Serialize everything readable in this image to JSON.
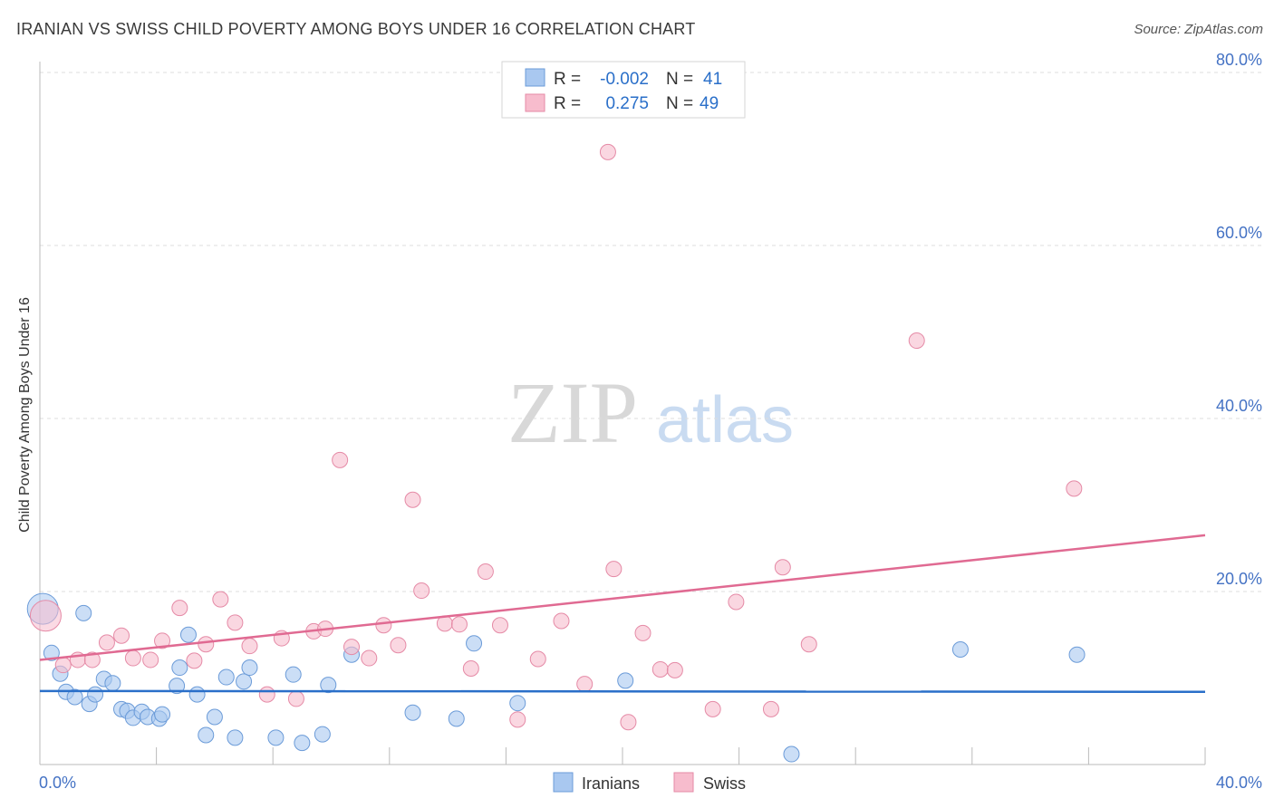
{
  "title": "IRANIAN VS SWISS CHILD POVERTY AMONG BOYS UNDER 16 CORRELATION CHART",
  "source": "Source: ZipAtlas.com",
  "watermark": {
    "zip": "ZIP",
    "atlas": "atlas"
  },
  "legend": {
    "r_label": "R =",
    "n_label": "N =",
    "rows": [
      {
        "r": "-0.002",
        "n": "41"
      },
      {
        "r": "0.275",
        "n": "49"
      }
    ]
  },
  "colors": {
    "iranians_fill": "#a9c8f0",
    "iranians_stroke": "#6b9bd8",
    "iranians_line": "#2a6fc9",
    "swiss_fill": "#f7bccd",
    "swiss_stroke": "#e58aa6",
    "swiss_line": "#e06a92",
    "axis_text": "#4472c4",
    "value_text": "#2a6fc9"
  },
  "chart_data": {
    "type": "scatter",
    "title": "IRANIAN VS SWISS CHILD POVERTY AMONG BOYS UNDER 16 CORRELATION CHART",
    "xlabel": "",
    "ylabel": "Child Poverty Among Boys Under 16",
    "xlim": [
      0,
      40
    ],
    "ylim": [
      0,
      80
    ],
    "x_tick_labels": [
      "0.0%",
      "40.0%"
    ],
    "y_ticks": [
      20,
      40,
      60,
      80
    ],
    "y_tick_labels": [
      "20.0%",
      "40.0%",
      "60.0%",
      "80.0%"
    ],
    "grid": true,
    "legend_position": "top-center",
    "series": [
      {
        "name": "Iranians",
        "r": -0.002,
        "n": 41,
        "trend": [
          [
            0,
            8.5
          ],
          [
            40,
            8.4
          ]
        ],
        "points": [
          [
            0.1,
            18.0,
            "big"
          ],
          [
            0.4,
            12.9
          ],
          [
            0.7,
            10.5
          ],
          [
            0.9,
            8.4
          ],
          [
            1.2,
            7.8
          ],
          [
            1.5,
            17.5
          ],
          [
            1.7,
            7.0
          ],
          [
            1.9,
            8.1
          ],
          [
            2.2,
            9.9
          ],
          [
            2.5,
            9.4
          ],
          [
            2.8,
            6.4
          ],
          [
            3.0,
            6.2
          ],
          [
            3.2,
            5.4
          ],
          [
            3.5,
            6.1
          ],
          [
            3.7,
            5.5
          ],
          [
            4.1,
            5.3
          ],
          [
            4.2,
            5.8
          ],
          [
            4.7,
            9.1
          ],
          [
            4.8,
            11.2
          ],
          [
            5.1,
            15.0
          ],
          [
            5.4,
            8.1
          ],
          [
            5.7,
            3.4
          ],
          [
            6.0,
            5.5
          ],
          [
            6.4,
            10.1
          ],
          [
            6.7,
            3.1
          ],
          [
            7.0,
            9.6
          ],
          [
            7.2,
            11.2
          ],
          [
            8.1,
            3.1
          ],
          [
            8.7,
            10.4
          ],
          [
            9.0,
            2.5
          ],
          [
            9.7,
            3.5
          ],
          [
            9.9,
            9.2
          ],
          [
            10.7,
            12.7
          ],
          [
            12.8,
            6.0
          ],
          [
            14.3,
            5.3
          ],
          [
            14.9,
            14.0
          ],
          [
            16.4,
            7.1
          ],
          [
            20.1,
            9.7
          ],
          [
            25.8,
            1.2
          ],
          [
            31.6,
            13.3
          ],
          [
            35.6,
            12.7
          ]
        ]
      },
      {
        "name": "Swiss",
        "r": 0.275,
        "n": 49,
        "trend": [
          [
            0,
            12.1
          ],
          [
            40,
            26.5
          ]
        ],
        "points": [
          [
            0.2,
            17.2,
            "big"
          ],
          [
            0.8,
            11.5
          ],
          [
            1.3,
            12.1
          ],
          [
            1.8,
            12.1
          ],
          [
            2.3,
            14.1
          ],
          [
            2.8,
            14.9
          ],
          [
            3.2,
            12.3
          ],
          [
            3.8,
            12.1
          ],
          [
            4.2,
            14.3
          ],
          [
            4.8,
            18.1
          ],
          [
            5.3,
            12.0
          ],
          [
            5.7,
            13.9
          ],
          [
            6.2,
            19.1
          ],
          [
            6.7,
            16.4
          ],
          [
            7.2,
            13.7
          ],
          [
            7.8,
            8.1
          ],
          [
            8.3,
            14.6
          ],
          [
            8.8,
            7.6
          ],
          [
            9.4,
            15.4
          ],
          [
            9.8,
            15.7
          ],
          [
            10.3,
            35.2
          ],
          [
            10.7,
            13.6
          ],
          [
            11.3,
            12.3
          ],
          [
            11.8,
            16.1
          ],
          [
            12.3,
            13.8
          ],
          [
            12.8,
            30.6
          ],
          [
            13.1,
            20.1
          ],
          [
            13.9,
            16.3
          ],
          [
            14.4,
            16.2
          ],
          [
            14.8,
            11.1
          ],
          [
            15.3,
            22.3
          ],
          [
            15.8,
            16.1
          ],
          [
            16.4,
            5.2
          ],
          [
            17.1,
            12.2
          ],
          [
            17.9,
            16.6
          ],
          [
            18.7,
            9.3
          ],
          [
            19.5,
            70.8
          ],
          [
            19.7,
            22.6
          ],
          [
            20.2,
            4.9
          ],
          [
            20.7,
            15.2
          ],
          [
            21.3,
            11.0
          ],
          [
            21.8,
            10.9
          ],
          [
            23.1,
            6.4
          ],
          [
            23.9,
            18.8
          ],
          [
            25.1,
            6.4
          ],
          [
            25.5,
            22.8
          ],
          [
            26.4,
            13.9
          ],
          [
            30.1,
            49.0
          ],
          [
            35.5,
            31.9
          ]
        ]
      }
    ]
  }
}
